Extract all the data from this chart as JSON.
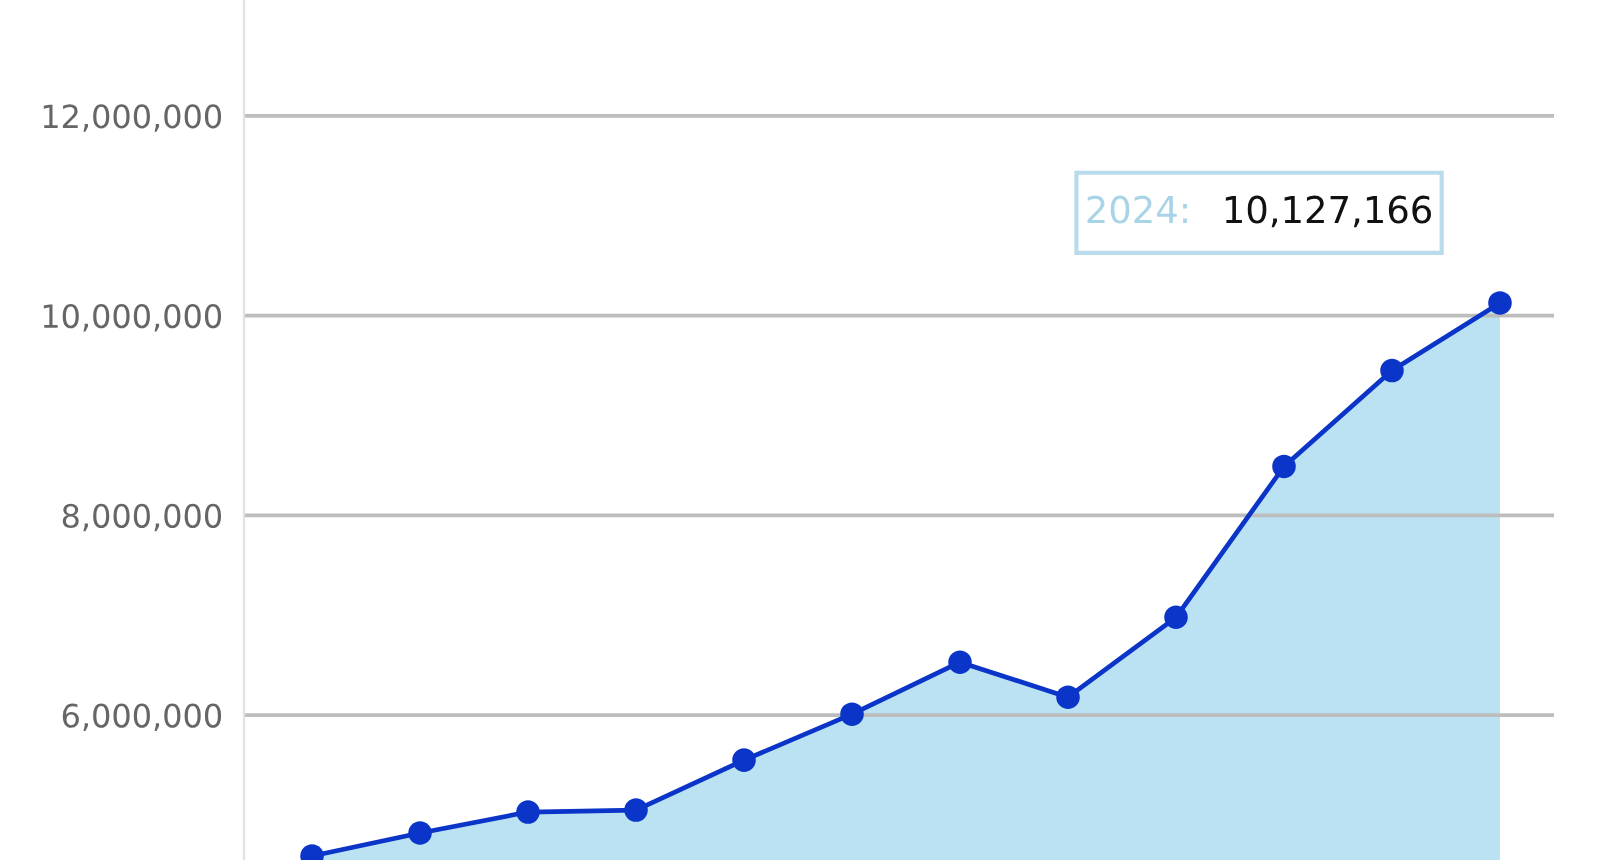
{
  "chart_data": {
    "type": "area",
    "categories": [
      null,
      null,
      null,
      null,
      null,
      null,
      null,
      null,
      null,
      null,
      null,
      null
    ],
    "series": [
      {
        "color": "#bbe2f2",
        "colors": [
          "#0a35c8",
          "#0a35c8",
          "#0a35c8",
          "#0a35c8",
          "#0a35c8",
          "#0a35c8",
          "#0a35c8",
          "#0a35c8",
          "#0a35c8",
          "#0a35c8",
          "#0a35c8",
          "#0a35c8"
        ],
        "values": [
          4590000,
          4820000,
          5030000,
          5050000,
          5550000,
          6010000,
          6530000,
          6180000,
          6980000,
          8490000,
          9450000,
          10127166
        ],
        "value_labels": [
          null,
          null,
          null,
          null,
          null,
          null,
          null,
          null,
          null,
          null,
          null,
          "10,127,166"
        ]
      }
    ],
    "ylim": [
      4550000,
      13160000
    ],
    "yticks": [
      {
        "value": 6000000,
        "label": "6,000,000"
      },
      {
        "value": 8000000,
        "label": "8,000,000"
      },
      {
        "value": 10000000,
        "label": "10,000,000"
      },
      {
        "value": 12000000,
        "label": "12,000,000"
      }
    ],
    "grid": "y",
    "tick_labels": "y",
    "marker": "circle",
    "line_style": "solid",
    "annotations": [
      "2024:"
    ]
  }
}
